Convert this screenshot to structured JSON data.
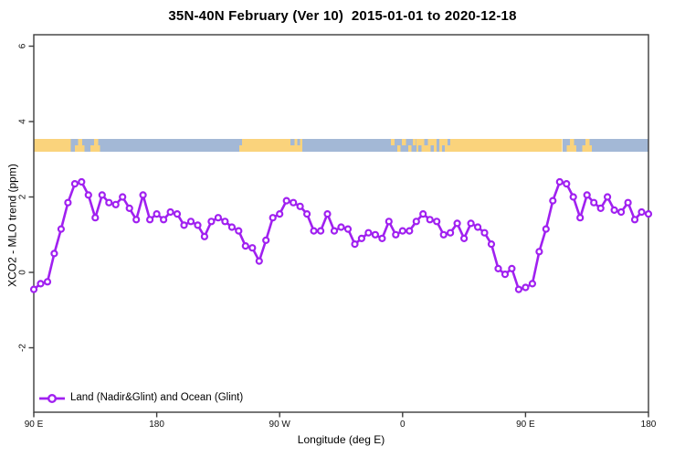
{
  "title": "35N-40N February (Ver 10)  2015-01-01 to 2020-12-18",
  "chart_data": {
    "type": "line",
    "title": "35N-40N February (Ver 10)  2015-01-01 to 2020-12-18",
    "xlabel": "Longitude (deg E)",
    "ylabel": "XCO2 - MLO trend (ppm)",
    "x_span_deg": 450,
    "x_ticks": [
      {
        "label": "90 E",
        "deg": 0
      },
      {
        "label": "180",
        "deg": 90
      },
      {
        "label": "90 W",
        "deg": 180
      },
      {
        "label": "0",
        "deg": 270
      },
      {
        "label": "90 E",
        "deg": 360
      },
      {
        "label": "180",
        "deg": 450
      }
    ],
    "y_ticks": [
      -2,
      0,
      2,
      4,
      6
    ],
    "ylim": [
      -3.7,
      6.4
    ],
    "grid": "off",
    "legend": {
      "label": "Land (Nadir&Glint) and Ocean (Glint)",
      "color": "#A020F0",
      "position": "bottom-left"
    },
    "series": [
      {
        "name": "Land (Nadir&Glint) and Ocean (Glint)",
        "color": "#A020F0",
        "marker": "open-circle",
        "start_deg": 0,
        "step_deg": 5,
        "values": [
          -0.45,
          -0.3,
          -0.25,
          0.5,
          1.15,
          1.85,
          2.35,
          2.4,
          2.05,
          1.45,
          2.05,
          1.85,
          1.8,
          2.0,
          1.7,
          1.4,
          2.05,
          1.4,
          1.55,
          1.4,
          1.6,
          1.55,
          1.25,
          1.35,
          1.25,
          0.95,
          1.35,
          1.45,
          1.35,
          1.2,
          1.1,
          0.7,
          0.65,
          0.3,
          0.85,
          1.45,
          1.55,
          1.9,
          1.85,
          1.75,
          1.55,
          1.1,
          1.1,
          1.55,
          1.1,
          1.2,
          1.15,
          0.75,
          0.9,
          1.05,
          1.0,
          0.9,
          1.35,
          1.0,
          1.1,
          1.1,
          1.35,
          1.55,
          1.4,
          1.35,
          1.0,
          1.05,
          1.3,
          0.9,
          1.3,
          1.2,
          1.05,
          0.75,
          0.1,
          -0.05,
          0.1,
          -0.45,
          -0.4,
          -0.3,
          0.55,
          1.15,
          1.9,
          2.4,
          2.35,
          2.0,
          1.45,
          2.05,
          1.85,
          1.7,
          2.0,
          1.65,
          1.6,
          1.85,
          1.4,
          1.6,
          1.55
        ]
      }
    ],
    "map_strip": {
      "description": "land-ocean longitude strip",
      "y_range_ppm": [
        3.2,
        3.54
      ],
      "land_color": "#FAD37C",
      "ocean_color": "#A3B8D6",
      "segments": [
        {
          "from": 0,
          "to": 27,
          "type": "land",
          "band": "full"
        },
        {
          "from": 27,
          "to": 150.4,
          "type": "ocean",
          "band": "full"
        },
        {
          "from": 30,
          "to": 37,
          "type": "land",
          "band": "lower"
        },
        {
          "from": 32.5,
          "to": 35.5,
          "type": "land",
          "band": "upper"
        },
        {
          "from": 41.5,
          "to": 48.5,
          "type": "land",
          "band": "lower"
        },
        {
          "from": 44,
          "to": 47,
          "type": "land",
          "band": "upper"
        },
        {
          "from": 150.4,
          "to": 196.5,
          "type": "land",
          "band": "full"
        },
        {
          "from": 150.4,
          "to": 152.5,
          "type": "ocean",
          "band": "upper"
        },
        {
          "from": 188,
          "to": 191,
          "type": "ocean",
          "band": "upper"
        },
        {
          "from": 193,
          "to": 195,
          "type": "ocean",
          "band": "upper"
        },
        {
          "from": 196.5,
          "to": 280,
          "type": "ocean",
          "band": "full"
        },
        {
          "from": 261.5,
          "to": 264,
          "type": "land",
          "band": "upper"
        },
        {
          "from": 266,
          "to": 268.5,
          "type": "land",
          "band": "lower"
        },
        {
          "from": 269.5,
          "to": 272.5,
          "type": "land",
          "band": "upper"
        },
        {
          "from": 274,
          "to": 276.5,
          "type": "land",
          "band": "lower"
        },
        {
          "from": 277.5,
          "to": 280,
          "type": "land",
          "band": "upper"
        },
        {
          "from": 280,
          "to": 307,
          "type": "land",
          "band": "full"
        },
        {
          "from": 281.5,
          "to": 284,
          "type": "ocean",
          "band": "lower"
        },
        {
          "from": 286,
          "to": 288.5,
          "type": "ocean",
          "band": "upper"
        },
        {
          "from": 290.5,
          "to": 293,
          "type": "ocean",
          "band": "lower"
        },
        {
          "from": 295,
          "to": 297,
          "type": "ocean",
          "band": "full"
        },
        {
          "from": 299,
          "to": 301,
          "type": "ocean",
          "band": "lower"
        },
        {
          "from": 303,
          "to": 305,
          "type": "ocean",
          "band": "upper"
        },
        {
          "from": 307,
          "to": 387,
          "type": "land",
          "band": "full"
        },
        {
          "from": 387,
          "to": 409,
          "type": "ocean",
          "band": "full"
        },
        {
          "from": 390,
          "to": 397,
          "type": "land",
          "band": "lower"
        },
        {
          "from": 392.5,
          "to": 395.5,
          "type": "land",
          "band": "upper"
        },
        {
          "from": 401.5,
          "to": 408.5,
          "type": "land",
          "band": "lower"
        },
        {
          "from": 404,
          "to": 407,
          "type": "land",
          "band": "upper"
        },
        {
          "from": 409,
          "to": 450,
          "type": "ocean",
          "band": "full"
        }
      ]
    }
  }
}
